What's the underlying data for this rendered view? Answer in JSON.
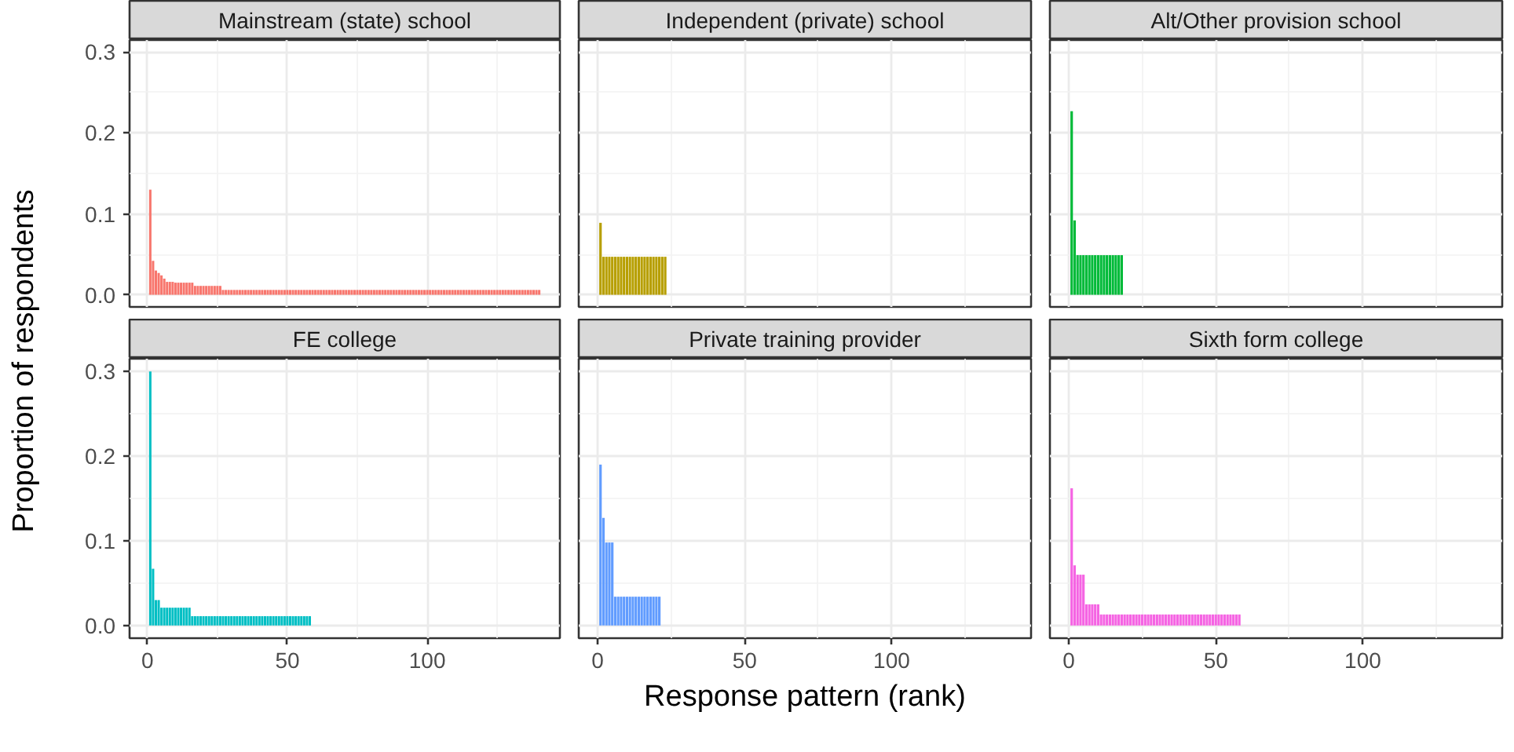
{
  "chart_data": [
    {
      "type": "bar",
      "title": "Mainstream (state) school",
      "color": "#f8766d",
      "grid": true,
      "tick_labels": "y",
      "xlim": [
        -6.4,
        147.4
      ],
      "ylim": [
        -0.015,
        0.315
      ],
      "xticks": [
        0,
        50,
        100
      ],
      "yticks": [
        {
          "value": 0,
          "label": "0.0"
        },
        0.1,
        0.2,
        0.3
      ],
      "x": [
        1,
        2,
        3,
        4,
        5,
        6,
        7,
        8,
        9,
        10,
        11,
        12,
        13,
        14,
        15,
        16,
        17,
        18,
        19,
        20,
        21,
        22,
        23,
        24,
        25,
        26,
        27,
        28,
        29,
        30,
        31,
        32,
        33,
        34,
        35,
        36,
        37,
        38,
        39,
        40,
        41,
        42,
        43,
        44,
        45,
        46,
        47,
        48,
        49,
        50,
        51,
        52,
        53,
        54,
        55,
        56,
        57,
        58,
        59,
        60,
        61,
        62,
        63,
        64,
        65,
        66,
        67,
        68,
        69,
        70,
        71,
        72,
        73,
        74,
        75,
        76,
        77,
        78,
        79,
        80,
        81,
        82,
        83,
        84,
        85,
        86,
        87,
        88,
        89,
        90,
        91,
        92,
        93,
        94,
        95,
        96,
        97,
        98,
        99,
        100,
        101,
        102,
        103,
        104,
        105,
        106,
        107,
        108,
        109,
        110,
        111,
        112,
        113,
        114,
        115,
        116,
        117,
        118,
        119,
        120,
        121,
        122,
        123,
        124,
        125,
        126,
        127,
        128,
        129,
        130,
        131,
        132,
        133,
        134,
        135,
        136,
        137,
        138,
        139,
        140
      ],
      "values": [
        0.13,
        0.042,
        0.03,
        0.027,
        0.024,
        0.02,
        0.016,
        0.016,
        0.016,
        0.015,
        0.015,
        0.015,
        0.015,
        0.015,
        0.015,
        0.015,
        0.011,
        0.011,
        0.011,
        0.011,
        0.011,
        0.011,
        0.011,
        0.011,
        0.011,
        0.011,
        0.006,
        0.006,
        0.006,
        0.006,
        0.006,
        0.006,
        0.006,
        0.006,
        0.006,
        0.006,
        0.006,
        0.006,
        0.006,
        0.006,
        0.006,
        0.006,
        0.006,
        0.006,
        0.006,
        0.006,
        0.006,
        0.006,
        0.006,
        0.006,
        0.006,
        0.006,
        0.006,
        0.006,
        0.006,
        0.006,
        0.006,
        0.006,
        0.006,
        0.006,
        0.006,
        0.006,
        0.006,
        0.006,
        0.006,
        0.006,
        0.006,
        0.006,
        0.006,
        0.006,
        0.006,
        0.006,
        0.006,
        0.006,
        0.006,
        0.006,
        0.006,
        0.006,
        0.006,
        0.006,
        0.006,
        0.006,
        0.006,
        0.006,
        0.006,
        0.006,
        0.006,
        0.006,
        0.006,
        0.006,
        0.006,
        0.006,
        0.006,
        0.006,
        0.006,
        0.006,
        0.006,
        0.006,
        0.006,
        0.006,
        0.006,
        0.006,
        0.006,
        0.006,
        0.006,
        0.006,
        0.006,
        0.006,
        0.006,
        0.006,
        0.006,
        0.006,
        0.006,
        0.006,
        0.006,
        0.006,
        0.006,
        0.006,
        0.006,
        0.006,
        0.006,
        0.006,
        0.006,
        0.006,
        0.006,
        0.006,
        0.006,
        0.006,
        0.006,
        0.006,
        0.006,
        0.006,
        0.006,
        0.006,
        0.006,
        0.006,
        0.006,
        0.006,
        0.006,
        0.006
      ]
    },
    {
      "type": "bar",
      "title": "Independent (private) school",
      "color": "#b79f00",
      "grid": true,
      "tick_labels": false,
      "xlim": [
        -6.4,
        147.4
      ],
      "ylim": [
        -0.015,
        0.315
      ],
      "xticks": [
        0,
        50,
        100
      ],
      "yticks": [
        0,
        0.1,
        0.2,
        0.3
      ],
      "x": [
        1,
        2,
        3,
        4,
        5,
        6,
        7,
        8,
        9,
        10,
        11,
        12,
        13,
        14,
        15,
        16,
        17,
        18,
        19,
        20,
        21,
        22,
        23
      ],
      "values": [
        0.089,
        0.047,
        0.047,
        0.047,
        0.047,
        0.047,
        0.047,
        0.047,
        0.047,
        0.047,
        0.047,
        0.047,
        0.047,
        0.047,
        0.047,
        0.047,
        0.047,
        0.047,
        0.047,
        0.047,
        0.047,
        0.047,
        0.047
      ]
    },
    {
      "type": "bar",
      "title": "Alt/Other provision school",
      "color": "#00ba38",
      "grid": true,
      "tick_labels": false,
      "xlim": [
        -6.4,
        147.4
      ],
      "ylim": [
        -0.015,
        0.315
      ],
      "xticks": [
        0,
        50,
        100
      ],
      "yticks": [
        0,
        0.1,
        0.2,
        0.3
      ],
      "x": [
        1,
        2,
        3,
        4,
        5,
        6,
        7,
        8,
        9,
        10,
        11,
        12,
        13,
        14,
        15,
        16,
        17,
        18
      ],
      "values": [
        0.227,
        0.092,
        0.049,
        0.049,
        0.049,
        0.049,
        0.049,
        0.049,
        0.049,
        0.049,
        0.049,
        0.049,
        0.049,
        0.049,
        0.049,
        0.049,
        0.049,
        0.049
      ]
    },
    {
      "type": "bar",
      "title": "FE college",
      "color": "#00bfc4",
      "grid": true,
      "ylabel": "Proportion of respondents",
      "xlim": [
        -6.4,
        147.4
      ],
      "ylim": [
        -0.015,
        0.315
      ],
      "xticks": [
        0,
        50,
        100
      ],
      "yticks": [
        {
          "value": 0,
          "label": "0.0"
        },
        0.1,
        0.2,
        0.3
      ],
      "x": [
        1,
        2,
        3,
        4,
        5,
        6,
        7,
        8,
        9,
        10,
        11,
        12,
        13,
        14,
        15,
        16,
        17,
        18,
        19,
        20,
        21,
        22,
        23,
        24,
        25,
        26,
        27,
        28,
        29,
        30,
        31,
        32,
        33,
        34,
        35,
        36,
        37,
        38,
        39,
        40,
        41,
        42,
        43,
        44,
        45,
        46,
        47,
        48,
        49,
        50,
        51,
        52,
        53,
        54,
        55,
        56,
        57,
        58
      ],
      "values": [
        0.3,
        0.067,
        0.03,
        0.03,
        0.021,
        0.021,
        0.021,
        0.021,
        0.021,
        0.021,
        0.021,
        0.021,
        0.021,
        0.021,
        0.021,
        0.011,
        0.011,
        0.011,
        0.011,
        0.011,
        0.011,
        0.011,
        0.011,
        0.011,
        0.011,
        0.011,
        0.011,
        0.011,
        0.011,
        0.011,
        0.011,
        0.011,
        0.011,
        0.011,
        0.011,
        0.011,
        0.011,
        0.011,
        0.011,
        0.011,
        0.011,
        0.011,
        0.011,
        0.011,
        0.011,
        0.011,
        0.011,
        0.011,
        0.011,
        0.011,
        0.011,
        0.011,
        0.011,
        0.011,
        0.011,
        0.011,
        0.011,
        0.011
      ]
    },
    {
      "type": "bar",
      "title": "Private training provider",
      "color": "#619cff",
      "grid": true,
      "tick_labels": "x",
      "xlabel": "Response pattern (rank)",
      "xlim": [
        -6.4,
        147.4
      ],
      "ylim": [
        -0.015,
        0.315
      ],
      "xticks": [
        0,
        50,
        100
      ],
      "yticks": [
        0,
        0.1,
        0.2,
        0.3
      ],
      "x": [
        1,
        2,
        3,
        4,
        5,
        6,
        7,
        8,
        9,
        10,
        11,
        12,
        13,
        14,
        15,
        16,
        17,
        18,
        19,
        20,
        21
      ],
      "values": [
        0.19,
        0.127,
        0.098,
        0.098,
        0.098,
        0.034,
        0.034,
        0.034,
        0.034,
        0.034,
        0.034,
        0.034,
        0.034,
        0.034,
        0.034,
        0.034,
        0.034,
        0.034,
        0.034,
        0.034,
        0.034
      ]
    },
    {
      "type": "bar",
      "title": "Sixth form college",
      "color": "#f564e3",
      "grid": true,
      "tick_labels": "x",
      "xlim": [
        -6.4,
        147.4
      ],
      "ylim": [
        -0.015,
        0.315
      ],
      "xticks": [
        0,
        50,
        100
      ],
      "yticks": [
        0,
        0.1,
        0.2,
        0.3
      ],
      "x": [
        1,
        2,
        3,
        4,
        5,
        6,
        7,
        8,
        9,
        10,
        11,
        12,
        13,
        14,
        15,
        16,
        17,
        18,
        19,
        20,
        21,
        22,
        23,
        24,
        25,
        26,
        27,
        28,
        29,
        30,
        31,
        32,
        33,
        34,
        35,
        36,
        37,
        38,
        39,
        40,
        41,
        42,
        43,
        44,
        45,
        46,
        47,
        48,
        49,
        50,
        51,
        52,
        53,
        54,
        55,
        56,
        57,
        58
      ],
      "values": [
        0.162,
        0.071,
        0.06,
        0.06,
        0.06,
        0.025,
        0.025,
        0.025,
        0.025,
        0.025,
        0.013,
        0.013,
        0.013,
        0.013,
        0.013,
        0.013,
        0.013,
        0.013,
        0.013,
        0.013,
        0.013,
        0.013,
        0.013,
        0.013,
        0.013,
        0.013,
        0.013,
        0.013,
        0.013,
        0.013,
        0.013,
        0.013,
        0.013,
        0.013,
        0.013,
        0.013,
        0.013,
        0.013,
        0.013,
        0.013,
        0.013,
        0.013,
        0.013,
        0.013,
        0.013,
        0.013,
        0.013,
        0.013,
        0.013,
        0.013,
        0.013,
        0.013,
        0.013,
        0.013,
        0.013,
        0.013,
        0.013,
        0.013
      ]
    }
  ]
}
